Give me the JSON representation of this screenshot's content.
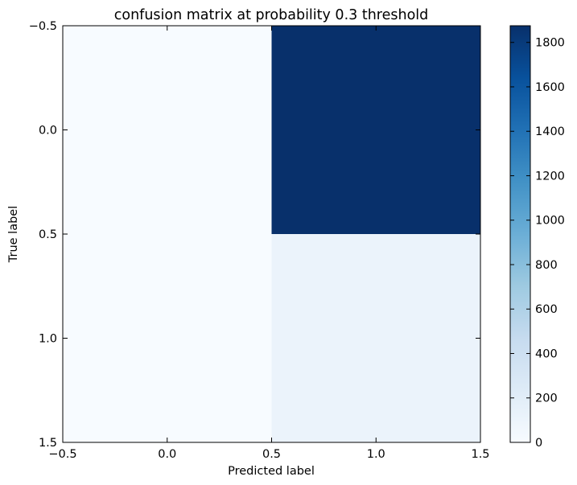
{
  "chart_data": {
    "type": "heatmap",
    "title": "confusion matrix at probability 0.3 threshold",
    "xlabel": "Predicted label",
    "ylabel": "True label",
    "xlim": [
      -0.5,
      1.5
    ],
    "ylim": [
      1.5,
      -0.5
    ],
    "x_ticks": [
      -0.5,
      0.0,
      0.5,
      1.0,
      1.5
    ],
    "x_tick_labels": [
      "−0.5",
      "0.0",
      "0.5",
      "1.0",
      "1.5"
    ],
    "y_ticks": [
      -0.5,
      0.0,
      0.5,
      1.0,
      1.5
    ],
    "y_tick_labels": [
      "−0.5",
      "0.0",
      "0.5",
      "1.0",
      "1.5"
    ],
    "matrix": [
      [
        0,
        1875
      ],
      [
        0,
        110
      ]
    ],
    "cells": [
      {
        "row": 0,
        "col": 0,
        "value": 0
      },
      {
        "row": 0,
        "col": 1,
        "value": 1875
      },
      {
        "row": 1,
        "col": 0,
        "value": 0
      },
      {
        "row": 1,
        "col": 1,
        "value": 110
      }
    ],
    "colormap": "Blues",
    "colormap_stops": [
      "#f7fbff",
      "#deebf7",
      "#c6dbef",
      "#9ecae1",
      "#6baed6",
      "#4292c6",
      "#2171b5",
      "#08519c",
      "#08306b"
    ],
    "colorbar": {
      "vmin": 0,
      "vmax": 1875,
      "ticks": [
        0,
        200,
        400,
        600,
        800,
        1000,
        1200,
        1400,
        1600,
        1800
      ],
      "tick_labels": [
        "0",
        "200",
        "400",
        "600",
        "800",
        "1000",
        "1200",
        "1400",
        "1600",
        "1800"
      ]
    },
    "grid": false,
    "legend": "none"
  }
}
